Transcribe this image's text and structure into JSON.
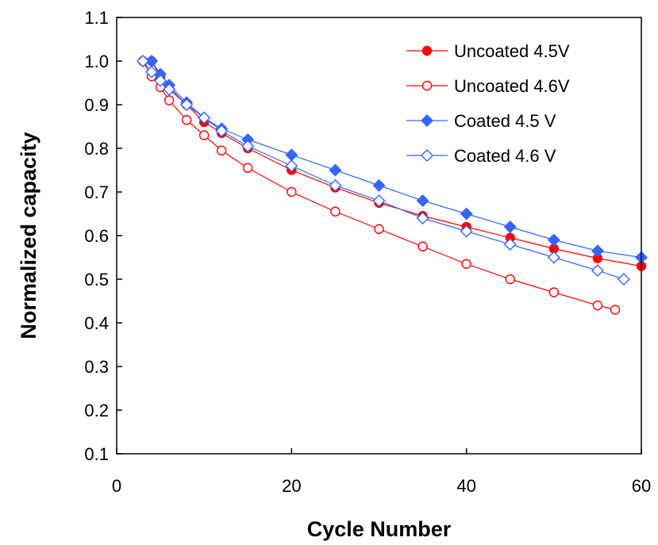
{
  "chart_data": {
    "type": "line",
    "title": "",
    "xlabel": "Cycle Number",
    "ylabel": "Normalized capacity",
    "xlim": [
      0,
      60
    ],
    "ylim": [
      0.1,
      1.1
    ],
    "xticks": [
      "0",
      "20",
      "40",
      "60"
    ],
    "yticks": [
      "0.1",
      "0.2",
      "0.3",
      "0.4",
      "0.5",
      "0.6",
      "0.7",
      "0.8",
      "0.9",
      "1.0",
      "1.1"
    ],
    "grid": false,
    "legend_position": "top-right",
    "series": [
      {
        "name": "Uncoated 4.5V",
        "color": "#ff0000",
        "marker": "circle",
        "filled": true,
        "x": [
          3,
          4,
          5,
          6,
          8,
          10,
          12,
          15,
          20,
          25,
          30,
          35,
          40,
          45,
          50,
          55,
          60
        ],
        "y": [
          1.0,
          1.0,
          0.965,
          0.94,
          0.9,
          0.86,
          0.835,
          0.8,
          0.75,
          0.71,
          0.675,
          0.645,
          0.62,
          0.595,
          0.57,
          0.548,
          0.53
        ]
      },
      {
        "name": "Uncoated 4.6V",
        "color": "#ff0000",
        "marker": "circle",
        "filled": false,
        "x": [
          3,
          4,
          5,
          6,
          8,
          10,
          12,
          15,
          20,
          25,
          30,
          35,
          40,
          45,
          50,
          55,
          57
        ],
        "y": [
          1.0,
          0.965,
          0.94,
          0.91,
          0.865,
          0.83,
          0.795,
          0.755,
          0.7,
          0.655,
          0.615,
          0.575,
          0.535,
          0.5,
          0.47,
          0.44,
          0.43
        ]
      },
      {
        "name": "Coated 4.5 V",
        "color": "#3366ff",
        "marker": "diamond",
        "filled": true,
        "x": [
          3,
          4,
          5,
          6,
          8,
          10,
          12,
          15,
          20,
          25,
          30,
          35,
          40,
          45,
          50,
          55,
          60
        ],
        "y": [
          1.0,
          1.0,
          0.97,
          0.945,
          0.905,
          0.87,
          0.845,
          0.82,
          0.785,
          0.75,
          0.715,
          0.68,
          0.65,
          0.62,
          0.59,
          0.565,
          0.55
        ]
      },
      {
        "name": "Coated 4.6 V",
        "color": "#3366ff",
        "marker": "diamond",
        "filled": false,
        "x": [
          3,
          4,
          5,
          6,
          8,
          10,
          12,
          15,
          20,
          25,
          30,
          35,
          40,
          45,
          50,
          55,
          58
        ],
        "y": [
          1.0,
          0.975,
          0.955,
          0.935,
          0.9,
          0.87,
          0.84,
          0.805,
          0.76,
          0.715,
          0.68,
          0.64,
          0.61,
          0.58,
          0.55,
          0.52,
          0.5
        ]
      }
    ]
  }
}
